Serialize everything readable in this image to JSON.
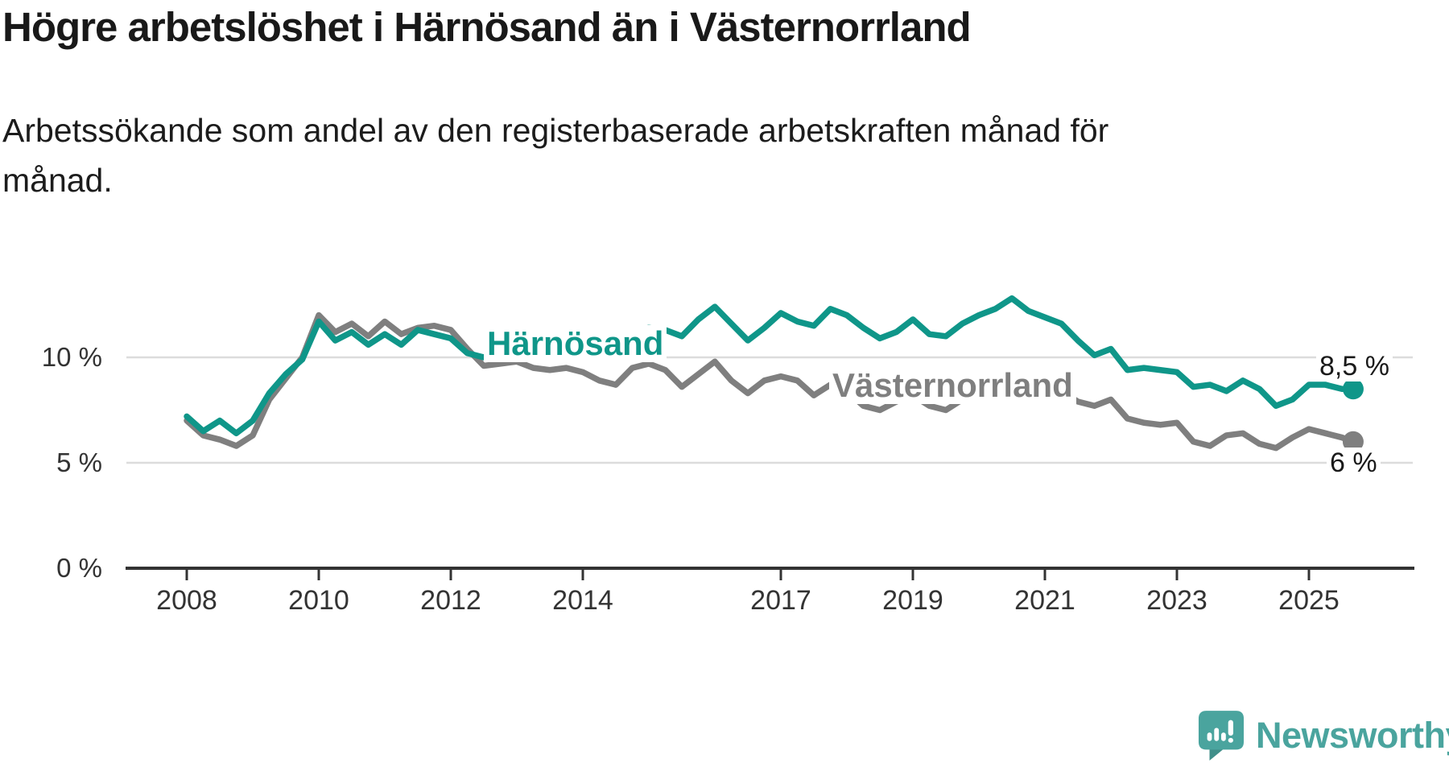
{
  "title": "Högre arbetslöshet i Härnösand än i Västernorrland",
  "subtitle_line1": "Arbetssökande som andel av den registerbaserade arbetskraften månad för",
  "subtitle_line2": "månad.",
  "colors": {
    "harnosand_teal": "#0f9689",
    "vasternorrland_gray": "#7f7f7f",
    "axis": "#333333",
    "grid": "#dcdcdc",
    "text": "#1a1a1a",
    "brand_teal": "#4aa49e"
  },
  "chart_data": {
    "type": "line",
    "unit": "%",
    "grid": "horizontal",
    "legend": "inline-series-labels",
    "ylim": [
      0,
      13.5
    ],
    "xlim": [
      2007.1,
      2026.6
    ],
    "y_ticks": [
      {
        "value": 0,
        "label": "0 %"
      },
      {
        "value": 5,
        "label": "5 %"
      },
      {
        "value": 10,
        "label": "10 %"
      }
    ],
    "x_ticks": [
      {
        "year": 2008,
        "label": "2008"
      },
      {
        "year": 2010,
        "label": "2010"
      },
      {
        "year": 2012,
        "label": "2012"
      },
      {
        "year": 2014,
        "label": "2014"
      },
      {
        "year": 2017,
        "label": "2017"
      },
      {
        "year": 2019,
        "label": "2019"
      },
      {
        "year": 2021,
        "label": "2021"
      },
      {
        "year": 2023,
        "label": "2023"
      },
      {
        "year": 2025,
        "label": "2025"
      }
    ],
    "x": [
      2008,
      2008.25,
      2008.5,
      2008.75,
      2009,
      2009.25,
      2009.5,
      2009.75,
      2010,
      2010.25,
      2010.5,
      2010.75,
      2011,
      2011.25,
      2011.5,
      2011.75,
      2012,
      2012.25,
      2012.5,
      2012.75,
      2013,
      2013.25,
      2013.5,
      2013.75,
      2014,
      2014.25,
      2014.5,
      2014.75,
      2015,
      2015.25,
      2015.5,
      2015.75,
      2016,
      2016.25,
      2016.5,
      2016.75,
      2017,
      2017.25,
      2017.5,
      2017.75,
      2018,
      2018.25,
      2018.5,
      2018.75,
      2019,
      2019.25,
      2019.5,
      2019.75,
      2020,
      2020.25,
      2020.5,
      2020.75,
      2021,
      2021.25,
      2021.5,
      2021.75,
      2022,
      2022.25,
      2022.5,
      2022.75,
      2023,
      2023.25,
      2023.5,
      2023.75,
      2024,
      2024.25,
      2024.5,
      2024.75,
      2025,
      2025.25,
      2025.5,
      2025.67
    ],
    "series": [
      {
        "name": "Härnösand",
        "color": "#0f9689",
        "end_label": "8,5 %",
        "end_value": 8.5,
        "values": [
          7.2,
          6.5,
          7.0,
          6.4,
          7.0,
          8.3,
          9.2,
          9.9,
          11.7,
          10.8,
          11.2,
          10.6,
          11.1,
          10.6,
          11.3,
          11.1,
          10.9,
          10.2,
          10.0,
          10.4,
          10.6,
          10.8,
          11.0,
          11.2,
          11.3,
          11.1,
          11.0,
          11.2,
          11.4,
          11.3,
          11.0,
          11.8,
          12.4,
          11.6,
          10.8,
          11.4,
          12.1,
          11.7,
          11.5,
          12.3,
          12.0,
          11.4,
          10.9,
          11.2,
          11.8,
          11.1,
          11.0,
          11.6,
          12.0,
          12.3,
          12.8,
          12.2,
          11.9,
          11.6,
          10.8,
          10.1,
          10.4,
          9.4,
          9.5,
          9.4,
          9.3,
          8.6,
          8.7,
          8.4,
          8.9,
          8.5,
          7.7,
          8.0,
          8.7,
          8.7,
          8.5,
          8.5
        ]
      },
      {
        "name": "Västernorrland",
        "color": "#7f7f7f",
        "end_label": "6 %",
        "end_value": 6.0,
        "values": [
          7.0,
          6.3,
          6.1,
          5.8,
          6.3,
          8.0,
          9.0,
          10.0,
          12.0,
          11.2,
          11.6,
          11.0,
          11.7,
          11.1,
          11.4,
          11.5,
          11.3,
          10.4,
          9.6,
          9.7,
          9.8,
          9.5,
          9.4,
          9.5,
          9.3,
          8.9,
          8.7,
          9.5,
          9.7,
          9.4,
          8.6,
          9.2,
          9.8,
          8.9,
          8.3,
          8.9,
          9.1,
          8.9,
          8.2,
          8.7,
          8.4,
          7.7,
          7.5,
          7.9,
          8.2,
          7.7,
          7.5,
          8.0,
          8.4,
          9.0,
          9.4,
          9.0,
          8.7,
          8.4,
          7.9,
          7.7,
          8.0,
          7.1,
          6.9,
          6.8,
          6.9,
          6.0,
          5.8,
          6.3,
          6.4,
          5.9,
          5.7,
          6.2,
          6.6,
          6.4,
          6.2,
          6.0
        ]
      }
    ]
  },
  "branding": {
    "logo_text": "Newsworthy",
    "icon": "newsworthy-speech-bubble-bar-chart-icon",
    "logo_color": "#4aa49e"
  }
}
